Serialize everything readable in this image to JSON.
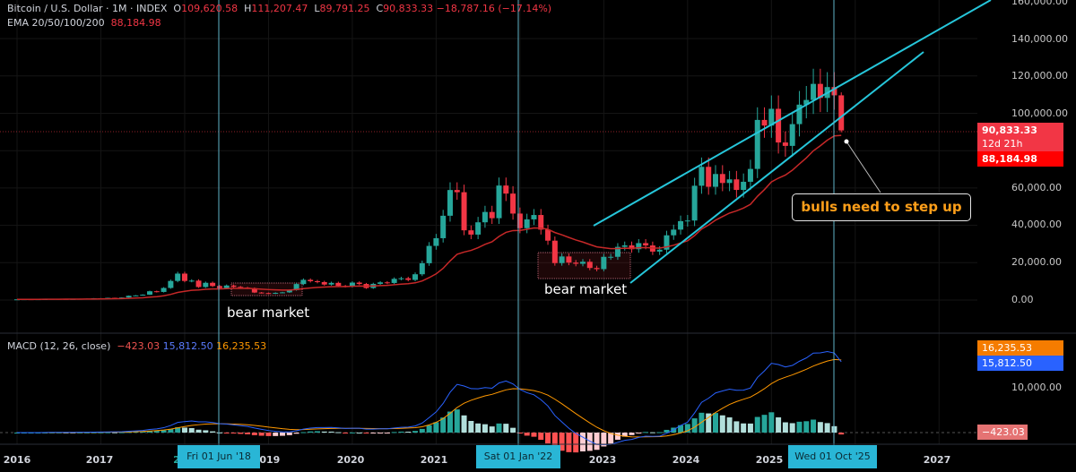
{
  "header": {
    "symbol": "Bitcoin / U.S. Dollar · 1M · INDEX",
    "open_label": "O",
    "open": "109,620.58",
    "high_label": "H",
    "high": "111,207.47",
    "low_label": "L",
    "low": "89,791.25",
    "close_label": "C",
    "close": "90,833.33",
    "change": "−18,787.16 (−17.14%)",
    "ema_label": "EMA 20/50/100/200",
    "ema_value": "88,184.98"
  },
  "macd_legend": {
    "label": "MACD (12, 26, close)",
    "histogram": "−423.03",
    "macd": "15,812.50",
    "signal": "16,235.53"
  },
  "price_axis": [
    "160,000.00",
    "140,000.00",
    "120,000.00",
    "100,000.00",
    "60,000.00",
    "40,000.00",
    "20,000.00",
    "0.00"
  ],
  "price_tags": {
    "last": "90,833.33",
    "countdown": "12d 21h",
    "ema": "88,184.98"
  },
  "macd_axis": {
    "tick": "10,000.00",
    "signal_tag": "16,235.53",
    "macd_tag": "15,812.50",
    "hist_tag": "−423.03"
  },
  "time_axis": [
    "2016",
    "2017",
    "2",
    "2019",
    "2020",
    "2021",
    "2023",
    "2024",
    "2025",
    "2027"
  ],
  "crosshair_dates": [
    "Fri 01 Jun '18",
    "Sat 01 Jan '22",
    "Wed 01 Oct '25"
  ],
  "annotations": {
    "bear1": "bear market",
    "bear2": "bear market",
    "callout": "bulls need to step up"
  },
  "colors": {
    "up": "#26a69a",
    "down": "#f23645",
    "ema": "#c62828",
    "macd": "#2962ff",
    "signal": "#ff9800",
    "channel": "#26c6da",
    "crosshair": "#5fb3c9"
  },
  "chart_data": {
    "type": "candlestick",
    "interval": "1M",
    "ylim": [
      0,
      160000
    ],
    "grid": true,
    "monthly_close_by_year": {
      "2016": [
        369,
        437,
        416,
        448,
        531,
        673,
        624,
        575,
        609,
        701,
        742,
        964
      ],
      "2017": [
        970,
        1190,
        1080,
        1348,
        2286,
        2480,
        2875,
        4703,
        4338,
        6468,
        10233,
        14156
      ],
      "2018": [
        10221,
        10397,
        6973,
        9240,
        7494,
        6404,
        7780,
        7037,
        6626,
        6318,
        4017,
        3742
      ],
      "2019": [
        3457,
        3854,
        4105,
        5350,
        8574,
        10817,
        10085,
        9630,
        8293,
        9199,
        7569,
        7193
      ],
      "2020": [
        9350,
        8599,
        6438,
        8658,
        9461,
        9138,
        11351,
        11656,
        10784,
        13805,
        19713,
        28990
      ],
      "2021": [
        33114,
        45137,
        58918,
        57750,
        37332,
        35041,
        41626,
        47167,
        43824,
        61318,
        57005,
        46306
      ],
      "2022": [
        38483,
        43193,
        45538,
        37714,
        31792,
        19785,
        23336,
        20050,
        19432,
        20496,
        17168,
        16548
      ],
      "2023": [
        23139,
        23147,
        28478,
        29268,
        27219,
        30477,
        29230,
        25940,
        26968,
        34667,
        37713,
        42265
      ],
      "2024": [
        42582,
        61198,
        71334,
        60637,
        67491,
        62678,
        64620,
        58970,
        63329,
        70216,
        96450,
        93429
      ],
      "2025": [
        102405,
        84374,
        82549,
        94207,
        104638,
        107135,
        115758,
        108236,
        114056,
        109620,
        90833
      ]
    },
    "last_candle": {
      "open": 109620.58,
      "high": 111207.47,
      "low": 89791.25,
      "close": 90833.33
    },
    "ema": {
      "length": 20,
      "last": 88184.98
    },
    "macd": {
      "fast": 12,
      "slow": 26,
      "source": "close",
      "last_macd": 15812.5,
      "last_signal": 16235.53,
      "last_hist": -423.03,
      "ylim_tick": 10000
    }
  }
}
